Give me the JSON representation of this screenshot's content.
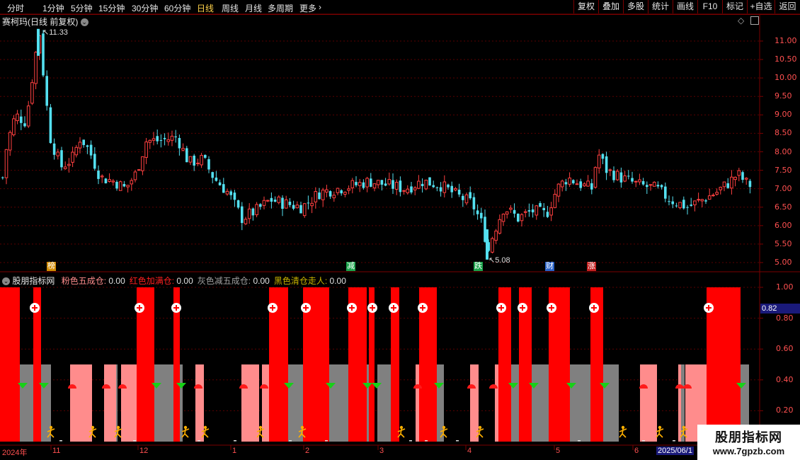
{
  "toolbar": {
    "timeframes": [
      "分时",
      "1分钟",
      "5分钟",
      "15分钟",
      "30分钟",
      "60分钟",
      "日线",
      "周线",
      "月线",
      "多周期",
      "更多"
    ],
    "active_timeframe": "日线",
    "more_arrow": "chevron-right-icon",
    "buttons": [
      "复权",
      "叠加",
      "多股",
      "统计",
      "画线",
      "F10",
      "标记",
      "+自选",
      "返回"
    ]
  },
  "main_panel": {
    "title": "赛柯玛(日线 前复权)",
    "high_label": "11.33",
    "low_label": "5.08",
    "y_ticks": [
      "11.00",
      "10.50",
      "10.00",
      "9.50",
      "9.00",
      "8.50",
      "8.00",
      "7.50",
      "7.00",
      "6.50",
      "6.00",
      "5.50",
      "5.00"
    ],
    "markers": [
      {
        "text": "榜",
        "color": "#d08a00"
      },
      {
        "text": "减",
        "color": "#1aa34a"
      },
      {
        "text": "跌",
        "color": "#1aa34a"
      },
      {
        "text": "财",
        "color": "#2a62c8"
      },
      {
        "text": "涨",
        "color": "#c42020"
      }
    ]
  },
  "indicator_panel": {
    "name": "股朋指标网",
    "legend": [
      {
        "label": "粉色五成仓:",
        "value": "0.00",
        "color": "#ff8c8c"
      },
      {
        "label": "红色加满仓:",
        "value": "0.00",
        "color": "#ff2020"
      },
      {
        "label": "灰色减五成仓:",
        "value": "0.00",
        "color": "#a0a0a0"
      },
      {
        "label": "黑色清仓走人:",
        "value": "0.00",
        "color": "#c8b400"
      }
    ],
    "y_ticks": [
      "1.00",
      "0.80",
      "0.60",
      "0.40",
      "0.20"
    ],
    "current_value": "0.82"
  },
  "x_axis": {
    "labels": [
      "2024年",
      "11",
      "12",
      "1",
      "2",
      "3",
      "4",
      "5",
      "6",
      "2025/06/1"
    ]
  },
  "watermark": {
    "line1": "股朋指标网",
    "line2": "www.7gpzb.com"
  },
  "colors": {
    "up": "#ff4040",
    "down": "#54e0f0",
    "grid": "#7a0000",
    "red": "#ff0000",
    "pink": "#ff8c8c",
    "gray": "#808080"
  }
}
